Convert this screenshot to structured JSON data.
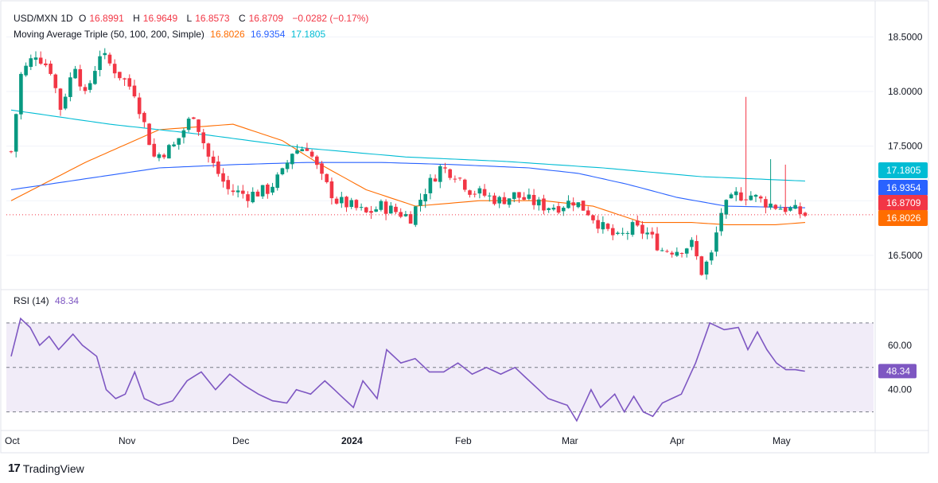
{
  "header": {
    "symbol": "USD/MXN",
    "interval": "1D",
    "open_label": "O",
    "open": "16.8991",
    "high_label": "H",
    "high": "16.9649",
    "low_label": "L",
    "low": "16.8573",
    "close_label": "C",
    "close": "16.8709",
    "change": "−0.0282 (−0.17%)"
  },
  "ma_legend": {
    "label": "Moving Average Triple (50, 100, 200, Simple)",
    "ma50": "16.8026",
    "ma100": "16.9354",
    "ma200": "17.1805"
  },
  "rsi_legend": {
    "label": "RSI (14)",
    "value": "48.34"
  },
  "brand": {
    "name": "TradingView"
  },
  "colors": {
    "up": "#089981",
    "down": "#f23645",
    "ma50": "#ff6d00",
    "ma100": "#2962ff",
    "ma200": "#00bcd4",
    "rsi": "#7e57c2",
    "rsi_band": "#ede7f6"
  },
  "chart_data": [
    {
      "type": "candlestick",
      "title": "USD/MXN, 1D",
      "ylim": [
        16.2,
        18.75
      ],
      "y_ticks": [
        "18.5000",
        "18.0000",
        "17.5000",
        "16.5000"
      ],
      "x_ticks": [
        "Oct",
        "Nov",
        "Dec",
        "2024",
        "Feb",
        "Mar",
        "Apr",
        "May"
      ],
      "price_tags": [
        {
          "label": "17.1805",
          "value": 17.1805,
          "color": "#00bcd4"
        },
        {
          "label": "16.9354",
          "value": 16.9354,
          "color": "#2962ff"
        },
        {
          "label": "16.8709",
          "value": 16.8709,
          "color": "#f23645"
        },
        {
          "label": "16.8026",
          "value": 16.8026,
          "color": "#ff6d00"
        }
      ],
      "last_close": 16.8709,
      "series_close_knots": [
        [
          0,
          17.45
        ],
        [
          2,
          18.15
        ],
        [
          5,
          18.35
        ],
        [
          8,
          18.2
        ],
        [
          10,
          17.85
        ],
        [
          13,
          18.25
        ],
        [
          15,
          17.95
        ],
        [
          18,
          18.35
        ],
        [
          21,
          18.2
        ],
        [
          25,
          18.0
        ],
        [
          29,
          17.4
        ],
        [
          33,
          17.5
        ],
        [
          37,
          17.8
        ],
        [
          40,
          17.4
        ],
        [
          44,
          17.1
        ],
        [
          48,
          17.05
        ],
        [
          52,
          17.1
        ],
        [
          55,
          17.25
        ],
        [
          57,
          17.45
        ],
        [
          60,
          17.5
        ],
        [
          63,
          17.2
        ],
        [
          66,
          17.0
        ],
        [
          69,
          16.95
        ],
        [
          72,
          16.88
        ],
        [
          75,
          16.95
        ],
        [
          78,
          16.9
        ],
        [
          81,
          16.85
        ],
        [
          84,
          17.1
        ],
        [
          87,
          17.3
        ],
        [
          90,
          17.25
        ],
        [
          93,
          17.1
        ],
        [
          96,
          17.05
        ],
        [
          99,
          17.0
        ],
        [
          102,
          17.05
        ],
        [
          105,
          17.0
        ],
        [
          108,
          16.95
        ],
        [
          111,
          16.95
        ],
        [
          114,
          17.0
        ],
        [
          117,
          16.9
        ],
        [
          120,
          16.75
        ],
        [
          123,
          16.65
        ],
        [
          126,
          16.75
        ],
        [
          129,
          16.7
        ],
        [
          132,
          16.55
        ],
        [
          135,
          16.55
        ],
        [
          138,
          16.6
        ],
        [
          140,
          16.35
        ],
        [
          142,
          16.5
        ],
        [
          144,
          16.9
        ],
        [
          147,
          17.05
        ],
        [
          150,
          17.05
        ],
        [
          152,
          17.0
        ],
        [
          155,
          16.95
        ],
        [
          158,
          16.92
        ],
        [
          161,
          16.87
        ]
      ],
      "series_high_events": [
        [
          149,
          17.95
        ],
        [
          154,
          17.38
        ],
        [
          157,
          17.33
        ]
      ],
      "series": [
        {
          "name": "SMA 50",
          "knots": [
            [
              0,
              17.0
            ],
            [
              15,
              17.35
            ],
            [
              30,
              17.65
            ],
            [
              45,
              17.7
            ],
            [
              55,
              17.55
            ],
            [
              62,
              17.35
            ],
            [
              72,
              17.1
            ],
            [
              82,
              16.95
            ],
            [
              95,
              17.0
            ],
            [
              108,
              17.0
            ],
            [
              118,
              16.95
            ],
            [
              128,
              16.8
            ],
            [
              138,
              16.8
            ],
            [
              145,
              16.78
            ],
            [
              155,
              16.78
            ],
            [
              161,
              16.8
            ]
          ]
        },
        {
          "name": "SMA 100",
          "knots": [
            [
              0,
              17.1
            ],
            [
              15,
              17.2
            ],
            [
              30,
              17.3
            ],
            [
              45,
              17.33
            ],
            [
              60,
              17.35
            ],
            [
              75,
              17.35
            ],
            [
              90,
              17.33
            ],
            [
              105,
              17.3
            ],
            [
              115,
              17.25
            ],
            [
              125,
              17.15
            ],
            [
              135,
              17.03
            ],
            [
              145,
              16.95
            ],
            [
              161,
              16.935
            ]
          ]
        },
        {
          "name": "SMA 200",
          "knots": [
            [
              0,
              17.83
            ],
            [
              20,
              17.7
            ],
            [
              40,
              17.6
            ],
            [
              60,
              17.48
            ],
            [
              80,
              17.4
            ],
            [
              100,
              17.36
            ],
            [
              120,
              17.3
            ],
            [
              140,
              17.22
            ],
            [
              161,
              17.18
            ]
          ]
        }
      ]
    },
    {
      "type": "line",
      "title": "RSI (14)",
      "ylim": [
        22,
        80
      ],
      "y_ticks": [
        "60.00",
        "40.00"
      ],
      "bands": {
        "upper": 70,
        "lower": 30
      },
      "current_tag": {
        "label": "48.34",
        "value": 48.34
      },
      "series": [
        {
          "name": "RSI",
          "knots": [
            [
              0,
              55
            ],
            [
              2,
              72
            ],
            [
              4,
              68
            ],
            [
              6,
              60
            ],
            [
              8,
              64
            ],
            [
              10,
              58
            ],
            [
              13,
              65
            ],
            [
              15,
              60
            ],
            [
              18,
              55
            ],
            [
              20,
              40
            ],
            [
              22,
              36
            ],
            [
              24,
              38
            ],
            [
              26,
              48
            ],
            [
              28,
              36
            ],
            [
              31,
              33
            ],
            [
              34,
              35
            ],
            [
              37,
              44
            ],
            [
              40,
              48
            ],
            [
              43,
              40
            ],
            [
              46,
              47
            ],
            [
              49,
              42
            ],
            [
              52,
              38
            ],
            [
              55,
              35
            ],
            [
              58,
              34
            ],
            [
              60,
              40
            ],
            [
              63,
              38
            ],
            [
              66,
              44
            ],
            [
              69,
              38
            ],
            [
              72,
              32
            ],
            [
              74,
              44
            ],
            [
              77,
              36
            ],
            [
              79,
              58
            ],
            [
              82,
              52
            ],
            [
              85,
              54
            ],
            [
              88,
              48
            ],
            [
              91,
              48
            ],
            [
              94,
              52
            ],
            [
              97,
              47
            ],
            [
              100,
              50
            ],
            [
              103,
              47
            ],
            [
              106,
              50
            ],
            [
              110,
              42
            ],
            [
              113,
              36
            ],
            [
              117,
              33
            ],
            [
              119,
              26
            ],
            [
              122,
              40
            ],
            [
              124,
              32
            ],
            [
              127,
              38
            ],
            [
              129,
              30
            ],
            [
              131,
              37
            ],
            [
              133,
              30
            ],
            [
              135,
              28
            ],
            [
              137,
              34
            ],
            [
              139,
              36
            ],
            [
              141,
              38
            ],
            [
              144,
              52
            ],
            [
              147,
              70
            ],
            [
              150,
              67
            ],
            [
              153,
              68
            ],
            [
              155,
              58
            ],
            [
              157,
              66
            ],
            [
              159,
              58
            ],
            [
              161,
              52
            ],
            [
              163,
              49
            ],
            [
              165,
              49
            ],
            [
              167,
              48.3
            ]
          ]
        }
      ]
    }
  ]
}
